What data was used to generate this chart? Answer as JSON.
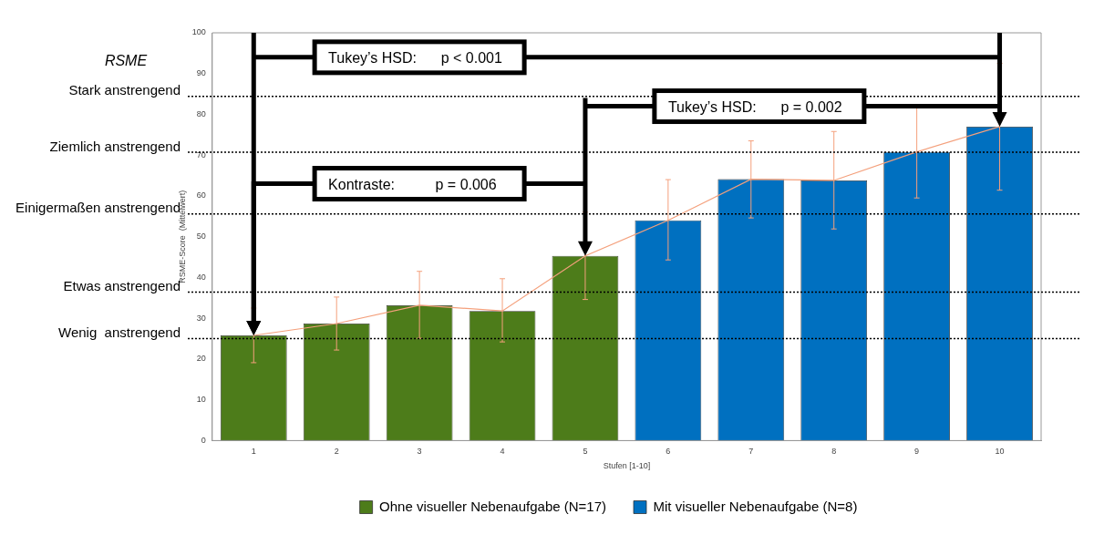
{
  "chart_data": {
    "type": "bar",
    "xlabel": "Stufen [1-10]",
    "ylabel": "RSME-Score  (Mittelwert)",
    "categories": [
      "1",
      "2",
      "3",
      "4",
      "5",
      "6",
      "7",
      "8",
      "9",
      "10"
    ],
    "series": [
      {
        "name": "Ohne visueller Nebenaufgabe (N=17)",
        "color": "#4d7c1a",
        "values": [
          25.8,
          28.7,
          33.2,
          31.8,
          45.3,
          null,
          null,
          null,
          null,
          null
        ]
      },
      {
        "name": "Mit visueller Nebenaufgabe (N=8)",
        "color": "#0070c0",
        "values": [
          null,
          null,
          null,
          null,
          null,
          54.0,
          64.1,
          63.8,
          70.8,
          77.0
        ]
      },
      {
        "type": "line",
        "color": "#f4a07c",
        "marker": "none",
        "values": [
          25.8,
          28.7,
          33.2,
          31.8,
          45.3,
          54.0,
          64.1,
          63.8,
          70.8,
          77.0
        ],
        "errors": [
          [
            19.1,
            32.5
          ],
          [
            22.2,
            35.2
          ],
          [
            25.1,
            41.5
          ],
          [
            24.2,
            39.7
          ],
          [
            34.6,
            56.0
          ],
          [
            44.3,
            64.0
          ],
          [
            54.6,
            73.5
          ],
          [
            51.9,
            75.8
          ],
          [
            59.5,
            81.9
          ],
          [
            61.4,
            92.5
          ]
        ]
      }
    ],
    "ylim": [
      0,
      100
    ],
    "yticks": [
      0,
      10,
      20,
      30,
      40,
      50,
      60,
      70,
      80,
      90,
      100
    ],
    "grid": false,
    "legend": "bottom",
    "ref_lines": [
      {
        "axis": "y",
        "value": 84.4,
        "label": "Stark anstrengend",
        "line_style": "dotted",
        "color": "#000000"
      },
      {
        "axis": "y",
        "value": 70.7,
        "label": "Ziemlich anstrengend",
        "line_style": "dotted",
        "color": "#000000"
      },
      {
        "axis": "y",
        "value": 55.6,
        "label": "Einigermaßen anstrengend",
        "line_style": "dotted",
        "color": "#000000"
      },
      {
        "axis": "y",
        "value": 36.4,
        "label": "Etwas anstrengend",
        "line_style": "dotted",
        "color": "#000000"
      },
      {
        "axis": "y",
        "value": 25.0,
        "label": "Wenig  anstrengend",
        "line_style": "dotted",
        "color": "#000000"
      }
    ],
    "annotations": [
      "RSME",
      "Tukey’s HSD:      p < 0.001",
      "Kontraste:          p = 0.006",
      "Tukey’s HSD:      p = 0.002"
    ]
  }
}
